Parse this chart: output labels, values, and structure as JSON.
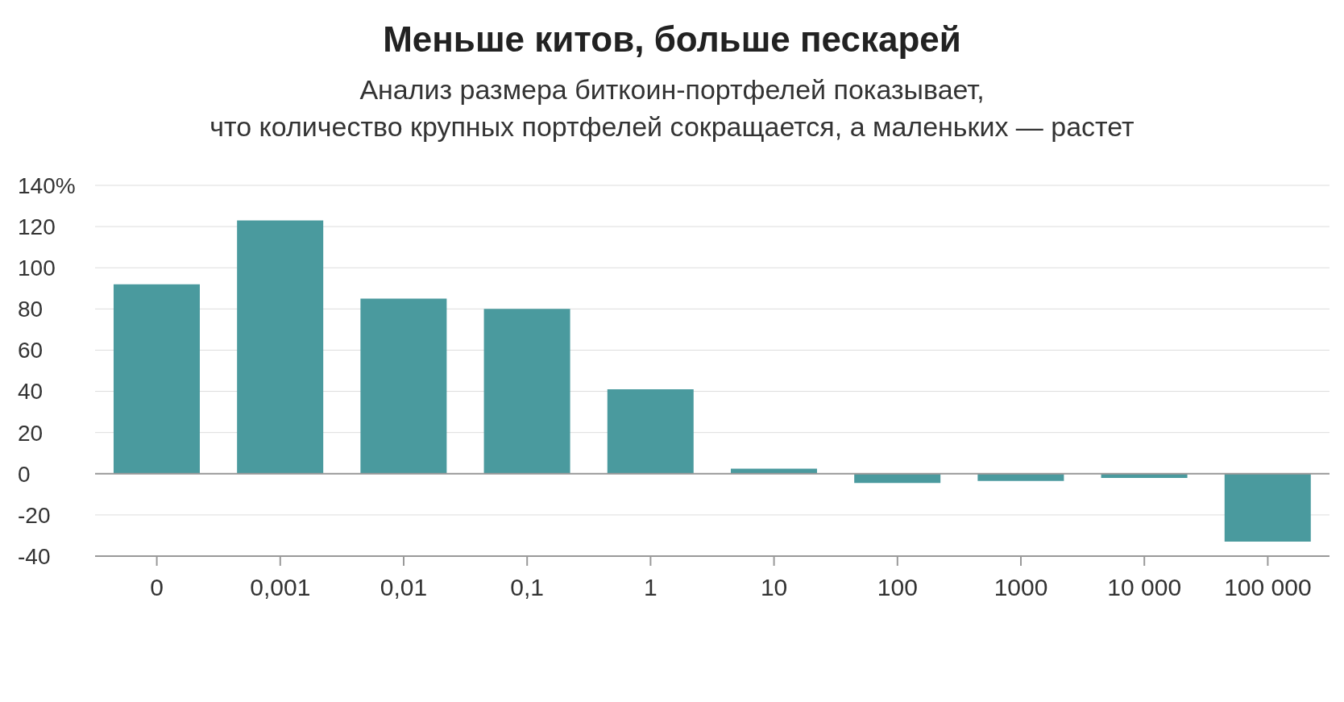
{
  "chart_data": {
    "type": "bar",
    "title": "Меньше китов, больше пескарей",
    "subtitle": "Анализ размера биткоин-портфелей показывает,\nчто количество крупных портфелей сокращается, а маленьких — растет",
    "categories": [
      "0",
      "0,001",
      "0,01",
      "0,1",
      "1",
      "10",
      "100",
      "1000",
      "10 000",
      "100 000"
    ],
    "values": [
      92,
      123,
      85,
      80,
      41,
      2.5,
      -4.5,
      -3.5,
      -2,
      -33
    ],
    "color": "#4a9a9e",
    "ylim": [
      -40,
      140
    ],
    "yticks": [
      -40,
      -20,
      0,
      20,
      40,
      60,
      80,
      100,
      120,
      {
        "value": 140,
        "label": "140%"
      }
    ],
    "grid": "y",
    "ref_lines": [
      {
        "axis": "y",
        "value": 0,
        "color": "#999999"
      }
    ]
  }
}
